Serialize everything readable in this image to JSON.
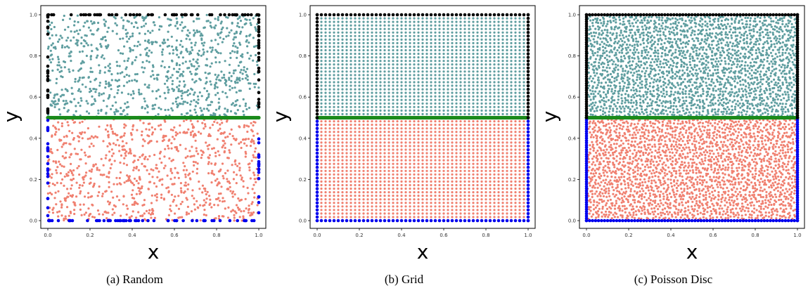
{
  "chart_data": [
    {
      "type": "scatter",
      "caption": "(a) Random",
      "sampling": "random",
      "xlabel": "x",
      "ylabel": "y",
      "xlim": [
        0,
        1
      ],
      "ylim": [
        0,
        1
      ],
      "xticks": [
        "0.0",
        "0.2",
        "0.4",
        "0.6",
        "0.8",
        "1.0"
      ],
      "yticks": [
        "0.0",
        "0.2",
        "0.4",
        "0.6",
        "0.8",
        "1.0"
      ],
      "interface_y": 0.5,
      "grid": false,
      "colors": {
        "upper_interior": "#5f9ea0",
        "lower_interior": "#f08070",
        "upper_boundary": "#000000",
        "lower_boundary": "#0000ee",
        "interface": "#1a8a1a"
      }
    },
    {
      "type": "scatter",
      "caption": "(b) Grid",
      "sampling": "grid",
      "xlabel": "x",
      "ylabel": "y",
      "xlim": [
        0,
        1
      ],
      "ylim": [
        0,
        1
      ],
      "xticks": [
        "0.0",
        "0.2",
        "0.4",
        "0.6",
        "0.8",
        "1.0"
      ],
      "yticks": [
        "0.0",
        "0.2",
        "0.4",
        "0.6",
        "0.8",
        "1.0"
      ],
      "interface_y": 0.5,
      "grid": false,
      "colors": {
        "upper_interior": "#5f9ea0",
        "lower_interior": "#f08070",
        "upper_boundary": "#000000",
        "lower_boundary": "#0000ee",
        "interface": "#1a8a1a"
      }
    },
    {
      "type": "scatter",
      "caption": "(c) Poisson Disc",
      "sampling": "poisson",
      "xlabel": "x",
      "ylabel": "y",
      "xlim": [
        0,
        1
      ],
      "ylim": [
        0,
        1
      ],
      "xticks": [
        "0.0",
        "0.2",
        "0.4",
        "0.6",
        "0.8",
        "1.0"
      ],
      "yticks": [
        "0.0",
        "0.2",
        "0.4",
        "0.6",
        "0.8",
        "1.0"
      ],
      "interface_y": 0.5,
      "grid": false,
      "colors": {
        "upper_interior": "#5f9ea0",
        "lower_interior": "#f08070",
        "upper_boundary": "#000000",
        "lower_boundary": "#0000ee",
        "interface": "#1a8a1a"
      }
    }
  ]
}
